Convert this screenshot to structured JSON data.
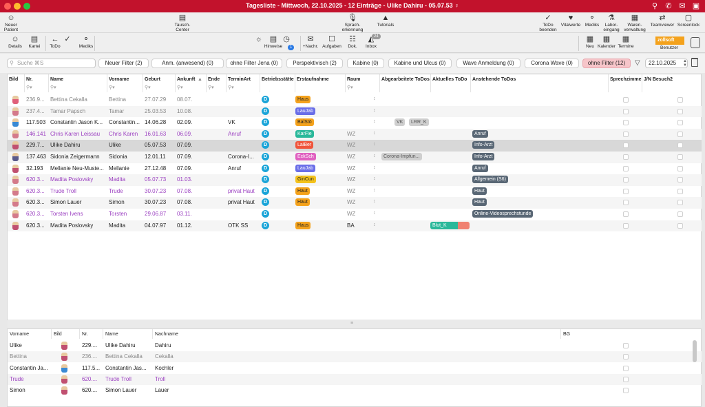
{
  "window": {
    "title": "Tagesliste - Mittwoch, 22.10.2025 - 12 Einträge - Ulike Dahiru - 05.07.53 ♀"
  },
  "toolbar1": [
    {
      "label": "Neuer\nPatient",
      "icon": "add-patient-icon"
    },
    {
      "label": "Tausch-Center",
      "icon": "swap-center-icon"
    },
    {
      "label": "Sprach-\nerkennung",
      "icon": "microphone-icon"
    },
    {
      "label": "Tutorials",
      "icon": "graduation-cap-icon"
    },
    {
      "label": "ToDo\nbeenden",
      "icon": "check-circle-icon"
    },
    {
      "label": "Vitalwerte",
      "icon": "heartbeat-icon"
    },
    {
      "label": "Mediks",
      "icon": "pill-icon"
    },
    {
      "label": "Labor-\neingang",
      "icon": "lab-flask-icon"
    },
    {
      "label": "Waren-\nverwaltung",
      "icon": "inventory-icon"
    },
    {
      "label": "Teamviewer",
      "icon": "teamviewer-icon"
    },
    {
      "label": "Screenlock",
      "icon": "screenlock-icon"
    }
  ],
  "toolbar2": [
    {
      "label": "Details",
      "icon": "person-icon"
    },
    {
      "label": "Kartei",
      "icon": "card-file-icon"
    },
    {
      "label": "ToDo",
      "icon": "back-arrow-icon"
    },
    {
      "label": "",
      "icon": "check-icon"
    },
    {
      "label": "Mediks",
      "icon": "pill-icon"
    },
    {
      "label": "",
      "icon": "lamp-icon"
    },
    {
      "label": "Hinweise",
      "icon": "clipboard-icon"
    },
    {
      "label": "",
      "icon": "alarm-clock-icon"
    },
    {
      "label": "+Nachr.",
      "icon": "message-icon"
    },
    {
      "label": "Aufgaben",
      "icon": "tasks-icon"
    },
    {
      "label": "Dok.",
      "icon": "book-icon"
    },
    {
      "label": "Inbox",
      "icon": "inbox-icon"
    },
    {
      "label": "Neu",
      "icon": "calendar-new-icon"
    },
    {
      "label": "Kalender",
      "icon": "calendar-icon"
    },
    {
      "label": "Termine",
      "icon": "appointments-icon"
    },
    {
      "label": "Benutzer",
      "icon": "user-icon"
    }
  ],
  "badges": {
    "hinweise": "1",
    "inbox": "24"
  },
  "user_logo": "zollsoft",
  "search": {
    "placeholder": "Suche ⌘S"
  },
  "filters": [
    "Neuer Filter (2)",
    "Anm. (anwesend) (0)",
    "ohne Filter Jena (0)",
    "Perspektivisch (2)",
    "Kabine (0)",
    "Kabine und Ulcus (0)",
    "Wave Anmeldung (0)",
    "Corona Wave (0)",
    "ohne Filter (12)"
  ],
  "date": "22.10.2025",
  "columns": [
    "Bild",
    "Nr.",
    "Name",
    "Vorname",
    "Geburt",
    "Ankunft",
    "Ende",
    "TerminArt",
    "Betriebsstätte",
    "Erstaufnahme",
    "Raum",
    "Abgearbeitete ToDos",
    "Aktuelles ToDo",
    "Anstehende ToDos",
    "Sprechzimme",
    "J/N Besuch2"
  ],
  "rows": [
    {
      "nr": "236.9...",
      "name": "Bettina Cekalla",
      "vorname": "Bettina",
      "geburt": "27.07.29",
      "ankunft": "08.07.",
      "ende": "",
      "terminart": "",
      "bs": "D",
      "erst": "Haus",
      "erst_color": "#f4a21c",
      "raum": "",
      "abg": [],
      "akt": "",
      "anst": [],
      "style": "gray"
    },
    {
      "nr": "237.4...",
      "name": "Tamar Papsch",
      "vorname": "Tamar",
      "geburt": "25.03.53",
      "ankunft": "10.08.",
      "ende": "",
      "terminart": "",
      "bs": "D",
      "erst": "LauJab",
      "erst_color": "#6a6ee8",
      "raum": "",
      "abg": [],
      "akt": "",
      "anst": [],
      "style": "gray"
    },
    {
      "nr": "117.503",
      "name": "Constantin Jason K...",
      "vorname": "Constantin...",
      "geburt": "14.06.28",
      "ankunft": "02.09.",
      "ende": "",
      "terminart": "VK",
      "bs": "D",
      "erst": "BalStö",
      "erst_color": "#f4a21c",
      "raum": "",
      "abg": [
        "VK",
        "LRR_K"
      ],
      "akt": "",
      "anst": [],
      "style": ""
    },
    {
      "nr": "146.141",
      "name": "Chris Karen Leissau",
      "vorname": "Chris Karen",
      "geburt": "16.01.63",
      "ankunft": "06.09.",
      "ende": "",
      "terminart": "Anruf",
      "bs": "D",
      "erst": "KarFie",
      "erst_color": "#2ab89a",
      "raum": "WZ",
      "abg": [],
      "akt": "",
      "anst": [
        "Anruf"
      ],
      "style": "purple"
    },
    {
      "nr": "229.7...",
      "name": "Ulike Dahiru",
      "vorname": "Ulike",
      "geburt": "05.07.53",
      "ankunft": "07.09.",
      "ende": "",
      "terminart": "",
      "bs": "D",
      "erst": "LaiBer",
      "erst_color": "#f0553c",
      "raum": "WZ",
      "abg": [],
      "akt": "",
      "anst": [
        "Info-Arzt"
      ],
      "style": "sel"
    },
    {
      "nr": "137.463",
      "name": "Sidonia Zeigermann",
      "vorname": "Sidonia",
      "geburt": "12.01.11",
      "ankunft": "07.09.",
      "ende": "",
      "terminart": "Corona-I...",
      "bs": "D",
      "erst": "EckSch",
      "erst_color": "#e060c0",
      "raum": "WZ",
      "abg": [
        "Corona-Impfun..."
      ],
      "akt": "",
      "anst": [
        "Info-Arzt"
      ],
      "style": ""
    },
    {
      "nr": "32.193",
      "name": "Mellanie Neu-Muste...",
      "vorname": "Mellanie",
      "geburt": "27.12.48",
      "ankunft": "07.09.",
      "ende": "",
      "terminart": "Anruf",
      "bs": "D",
      "erst": "LauJab",
      "erst_color": "#6a6ee8",
      "raum": "WZ",
      "abg": [],
      "akt": "",
      "anst": [
        "Anruf"
      ],
      "style": ""
    },
    {
      "nr": "620.3...",
      "name": "Madita Poslovsky",
      "vorname": "Madita",
      "geburt": "05.07.73",
      "ankunft": "01.03.",
      "ende": "",
      "terminart": "",
      "bs": "D",
      "erst": "GinCun",
      "erst_color": "#f4c21c",
      "raum": "WZ",
      "abg": [],
      "akt": "",
      "anst": [
        "Allgemein (S6)"
      ],
      "style": "purple"
    },
    {
      "nr": "620.3...",
      "name": "Trude Troll",
      "vorname": "Trude",
      "geburt": "30.07.23",
      "ankunft": "07.08.",
      "ende": "",
      "terminart": "privat Haut",
      "bs": "D",
      "erst": "Haut",
      "erst_color": "#f4a21c",
      "raum": "WZ",
      "abg": [],
      "akt": "",
      "anst": [
        "Haut"
      ],
      "style": "purple"
    },
    {
      "nr": "620.3...",
      "name": "Simon Lauer",
      "vorname": "Simon",
      "geburt": "30.07.23",
      "ankunft": "07.08.",
      "ende": "",
      "terminart": "privat Haut",
      "bs": "D",
      "erst": "Haut",
      "erst_color": "#f4a21c",
      "raum": "WZ",
      "abg": [],
      "akt": "",
      "anst": [
        "Haut"
      ],
      "style": ""
    },
    {
      "nr": "620.3...",
      "name": "Torsten Ivens",
      "vorname": "Torsten",
      "geburt": "29.06.87",
      "ankunft": "03.11.",
      "ende": "",
      "terminart": "",
      "bs": "D",
      "erst": "",
      "erst_color": "",
      "raum": "WZ",
      "abg": [],
      "akt": "",
      "anst": [
        "Online-Videosprechstunde"
      ],
      "style": "purple"
    },
    {
      "nr": "620.3...",
      "name": "Madita Poslovsky",
      "vorname": "Madita",
      "geburt": "04.07.97",
      "ankunft": "01.12.",
      "ende": "",
      "terminart": "OTK SS",
      "bs": "D",
      "erst": "Haus",
      "erst_color": "#f4a21c",
      "raum": "BA",
      "abg": [],
      "akt": "Blut_K",
      "anst": [],
      "style": ""
    }
  ],
  "bottom_columns": [
    "Vorname",
    "Bild",
    "Nr.",
    "Name",
    "Nachname",
    "BG"
  ],
  "bottom_rows": [
    {
      "vorname": "Ulike",
      "nr": "229....",
      "name": "Ulike Dahiru",
      "nachname": "Dahiru",
      "style": ""
    },
    {
      "vorname": "Bettina",
      "nr": "236....",
      "name": "Bettina Cekalla",
      "nachname": "Cekalla",
      "style": "gray"
    },
    {
      "vorname": "Constantin Ja...",
      "nr": "117.5...",
      "name": "Constantin Jas...",
      "nachname": "Kochler",
      "style": ""
    },
    {
      "vorname": "Trude",
      "nr": "620....",
      "name": "Trude Troll",
      "nachname": "Troll",
      "style": "purple"
    },
    {
      "vorname": "Simon",
      "nr": "620....",
      "name": "Simon Lauer",
      "nachname": "Lauer",
      "style": ""
    }
  ]
}
